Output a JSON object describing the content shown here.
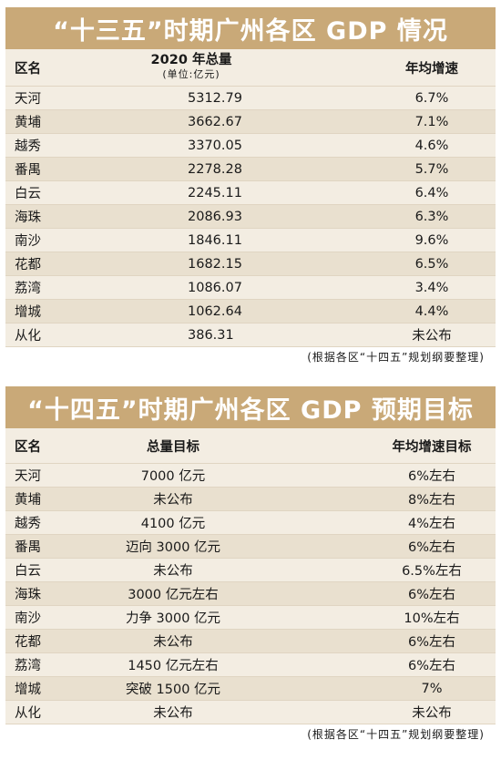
{
  "section1": {
    "title": "“十三五”时期广州各区 GDP 情况",
    "headers": {
      "district": "区名",
      "total": "2020 年总量",
      "unit": "(单位:亿元)",
      "growth": "年均增速"
    },
    "rows": [
      {
        "district": "天河",
        "total": "5312.79",
        "growth": "6.7%"
      },
      {
        "district": "黄埔",
        "total": "3662.67",
        "growth": "7.1%"
      },
      {
        "district": "越秀",
        "total": "3370.05",
        "growth": "4.6%"
      },
      {
        "district": "番禺",
        "total": "2278.28",
        "growth": "5.7%"
      },
      {
        "district": "白云",
        "total": "2245.11",
        "growth": "6.4%"
      },
      {
        "district": "海珠",
        "total": "2086.93",
        "growth": "6.3%"
      },
      {
        "district": "南沙",
        "total": "1846.11",
        "growth": "9.6%"
      },
      {
        "district": "花都",
        "total": "1682.15",
        "growth": "6.5%"
      },
      {
        "district": "荔湾",
        "total": "1086.07",
        "growth": "3.4%"
      },
      {
        "district": "增城",
        "total": "1062.64",
        "growth": "4.4%"
      },
      {
        "district": "从化",
        "total": "386.31",
        "growth": "未公布"
      }
    ],
    "source": "(根据各区“十四五”规划纲要整理)"
  },
  "section2": {
    "title": "“十四五”时期广州各区 GDP 预期目标",
    "headers": {
      "district": "区名",
      "total": "总量目标",
      "growth": "年均增速目标"
    },
    "rows": [
      {
        "district": "天河",
        "total": "7000 亿元",
        "growth": "6%左右"
      },
      {
        "district": "黄埔",
        "total": "未公布",
        "growth": "8%左右"
      },
      {
        "district": "越秀",
        "total": "4100 亿元",
        "growth": "4%左右"
      },
      {
        "district": "番禺",
        "total": "迈向 3000 亿元",
        "growth": "6%左右"
      },
      {
        "district": "白云",
        "total": "未公布",
        "growth": "6.5%左右"
      },
      {
        "district": "海珠",
        "total": "3000 亿元左右",
        "growth": "6%左右"
      },
      {
        "district": "南沙",
        "total": "力争 3000 亿元",
        "growth": "10%左右"
      },
      {
        "district": "花都",
        "total": "未公布",
        "growth": "6%左右"
      },
      {
        "district": "荔湾",
        "total": "1450 亿元左右",
        "growth": "6%左右"
      },
      {
        "district": "增城",
        "total": "突破 1500 亿元",
        "growth": "7%"
      },
      {
        "district": "从化",
        "total": "未公布",
        "growth": "未公布"
      }
    ],
    "source": "(根据各区“十四五”规划纲要整理)"
  }
}
